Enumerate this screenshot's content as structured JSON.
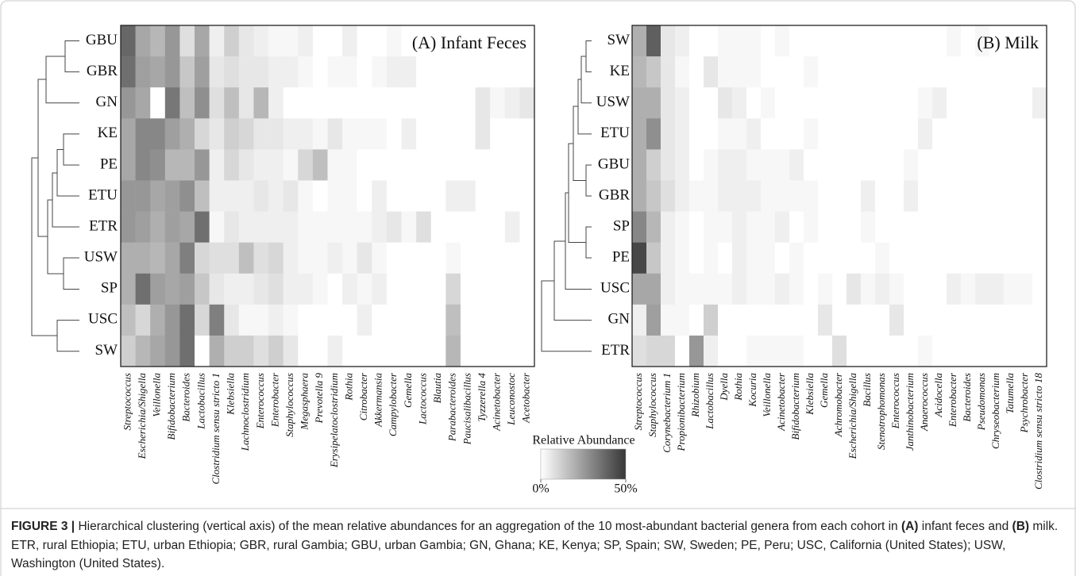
{
  "chart_data": [
    {
      "type": "heatmap",
      "title": "(A) Infant Feces",
      "rows": [
        "GBU",
        "GBR",
        "GN",
        "KE",
        "PE",
        "ETU",
        "ETR",
        "USW",
        "SP",
        "USC",
        "SW"
      ],
      "columns": [
        "Streptococcus",
        "Escherichia/Shigella",
        "Veillonella",
        "Bifidobacterium",
        "Bacteroides",
        "Lactobacillus",
        "Clostridium sensu stricto 1",
        "Klebsiella",
        "Lachnoclostridium",
        "Enterococcus",
        "Enterobacter",
        "Staphylococcus",
        "Megasphaera",
        "Prevotella 9",
        "Erysipelatoclostridium",
        "Rothia",
        "Citrobacter",
        "Akkermansia",
        "Campylobacter",
        "Gemella",
        "Lactococcus",
        "Blautia",
        "Parabacteroides",
        "Paucisalibacillus",
        "Tyzzerella 4",
        "Acinetobacter",
        "Leuconostoc",
        "Acetobacter"
      ],
      "values": [
        [
          38,
          22,
          18,
          26,
          8,
          22,
          4,
          12,
          6,
          4,
          2,
          2,
          4,
          0,
          0,
          4,
          0,
          0,
          2,
          0,
          0,
          0,
          0,
          0,
          0,
          0,
          0,
          0
        ],
        [
          36,
          24,
          22,
          26,
          14,
          24,
          6,
          8,
          6,
          6,
          4,
          4,
          2,
          0,
          2,
          2,
          0,
          2,
          4,
          4,
          0,
          0,
          0,
          0,
          0,
          0,
          0,
          0
        ],
        [
          26,
          22,
          0,
          34,
          16,
          28,
          8,
          16,
          6,
          18,
          4,
          0,
          0,
          0,
          0,
          0,
          0,
          0,
          0,
          0,
          0,
          0,
          0,
          0,
          6,
          2,
          4,
          6
        ],
        [
          22,
          30,
          30,
          24,
          20,
          10,
          6,
          12,
          10,
          6,
          6,
          4,
          4,
          2,
          6,
          2,
          2,
          2,
          0,
          4,
          0,
          0,
          0,
          0,
          6,
          0,
          0,
          0
        ],
        [
          22,
          30,
          28,
          18,
          18,
          26,
          4,
          10,
          6,
          4,
          4,
          2,
          10,
          16,
          2,
          2,
          0,
          0,
          0,
          0,
          0,
          0,
          0,
          0,
          0,
          0,
          0,
          0
        ],
        [
          26,
          26,
          22,
          24,
          28,
          16,
          4,
          4,
          4,
          6,
          4,
          6,
          2,
          0,
          2,
          2,
          0,
          4,
          0,
          0,
          0,
          0,
          4,
          4,
          0,
          0,
          0,
          0
        ],
        [
          26,
          24,
          20,
          24,
          22,
          36,
          2,
          6,
          4,
          4,
          4,
          4,
          2,
          2,
          2,
          2,
          2,
          4,
          6,
          2,
          8,
          0,
          0,
          0,
          0,
          0,
          4,
          0
        ],
        [
          20,
          20,
          18,
          22,
          32,
          10,
          8,
          8,
          16,
          8,
          10,
          4,
          2,
          2,
          4,
          2,
          6,
          2,
          0,
          0,
          0,
          0,
          2,
          0,
          0,
          0,
          0,
          0
        ],
        [
          20,
          36,
          24,
          22,
          24,
          14,
          6,
          4,
          4,
          6,
          8,
          4,
          4,
          2,
          0,
          4,
          2,
          4,
          0,
          0,
          0,
          0,
          10,
          0,
          0,
          0,
          0,
          0
        ],
        [
          16,
          10,
          20,
          26,
          36,
          10,
          32,
          6,
          2,
          2,
          4,
          2,
          0,
          0,
          0,
          0,
          4,
          0,
          0,
          0,
          0,
          0,
          16,
          0,
          0,
          0,
          0,
          0
        ],
        [
          12,
          18,
          22,
          26,
          36,
          0,
          20,
          12,
          12,
          8,
          12,
          6,
          0,
          0,
          4,
          0,
          0,
          0,
          0,
          0,
          0,
          0,
          18,
          0,
          0,
          0,
          0,
          0
        ]
      ]
    },
    {
      "type": "heatmap",
      "title": "(B) Milk",
      "rows": [
        "SW",
        "KE",
        "USW",
        "ETU",
        "GBU",
        "GBR",
        "SP",
        "PE",
        "USC",
        "GN",
        "ETR"
      ],
      "columns": [
        "Streptococcus",
        "Staphylococcus",
        "Corynebacterium 1",
        "Propionibacterium",
        "Rhizobium",
        "Lactobacillus",
        "Dyella",
        "Rothia",
        "Kocuria",
        "Veillonella",
        "Acinetobacter",
        "Bifidobacterium",
        "Klebsiella",
        "Gemella",
        "Achromobacter",
        "Escherichia/Shigella",
        "Bacillus",
        "Stenotrophomonas",
        "Enterococcus",
        "Janthinobacterium",
        "Anaerococcus",
        "Acidocella",
        "Enterobacter",
        "Bacteroides",
        "Pseudomonas",
        "Chryseobacterium",
        "Tatumella",
        "Psychrobacter",
        "Clostridium sensu stricto 18"
      ],
      "values": [
        [
          20,
          40,
          6,
          4,
          0,
          0,
          2,
          2,
          2,
          0,
          2,
          0,
          0,
          0,
          0,
          0,
          0,
          0,
          0,
          0,
          0,
          0,
          2,
          0,
          2,
          0,
          0,
          0,
          0
        ],
        [
          18,
          14,
          6,
          2,
          0,
          6,
          2,
          2,
          2,
          0,
          0,
          0,
          2,
          0,
          0,
          0,
          0,
          0,
          0,
          0,
          0,
          0,
          0,
          0,
          0,
          0,
          0,
          0,
          0
        ],
        [
          20,
          20,
          6,
          4,
          0,
          0,
          6,
          4,
          0,
          2,
          0,
          0,
          0,
          0,
          0,
          0,
          0,
          0,
          0,
          0,
          2,
          4,
          0,
          0,
          0,
          0,
          0,
          0,
          4
        ],
        [
          20,
          28,
          6,
          4,
          0,
          0,
          2,
          2,
          4,
          0,
          0,
          0,
          2,
          0,
          0,
          0,
          0,
          0,
          0,
          0,
          4,
          0,
          0,
          0,
          0,
          0,
          0,
          0,
          0
        ],
        [
          20,
          12,
          6,
          4,
          0,
          2,
          4,
          4,
          2,
          2,
          2,
          4,
          0,
          0,
          0,
          0,
          0,
          0,
          0,
          2,
          0,
          0,
          0,
          0,
          0,
          0,
          0,
          0,
          0
        ],
        [
          20,
          14,
          8,
          4,
          2,
          2,
          4,
          4,
          4,
          2,
          2,
          2,
          2,
          0,
          0,
          0,
          4,
          0,
          0,
          4,
          0,
          0,
          0,
          0,
          0,
          0,
          0,
          0,
          0
        ],
        [
          30,
          18,
          4,
          2,
          0,
          2,
          2,
          4,
          2,
          2,
          4,
          0,
          2,
          0,
          0,
          0,
          2,
          0,
          0,
          0,
          0,
          0,
          0,
          0,
          0,
          0,
          0,
          0,
          0
        ],
        [
          46,
          14,
          4,
          2,
          0,
          2,
          0,
          4,
          2,
          2,
          0,
          2,
          0,
          0,
          0,
          0,
          0,
          2,
          0,
          0,
          0,
          0,
          0,
          0,
          0,
          0,
          0,
          0,
          0
        ],
        [
          22,
          22,
          4,
          2,
          2,
          2,
          2,
          4,
          2,
          2,
          4,
          2,
          0,
          2,
          0,
          6,
          2,
          4,
          2,
          0,
          0,
          0,
          4,
          2,
          4,
          4,
          2,
          2,
          0
        ],
        [
          4,
          24,
          2,
          2,
          0,
          12,
          0,
          0,
          0,
          0,
          0,
          0,
          0,
          6,
          0,
          0,
          0,
          0,
          6,
          0,
          0,
          0,
          0,
          0,
          0,
          0,
          0,
          0,
          0
        ],
        [
          8,
          10,
          10,
          0,
          26,
          4,
          0,
          0,
          2,
          2,
          2,
          2,
          0,
          0,
          8,
          0,
          0,
          0,
          0,
          0,
          2,
          0,
          0,
          0,
          0,
          0,
          0,
          0,
          0
        ]
      ]
    }
  ],
  "colorbar": {
    "label": "Relative Abundance",
    "zlim": [
      0,
      50
    ],
    "ticks": [
      {
        "value": 0,
        "label": "0%"
      },
      {
        "value": 50,
        "label": "50%"
      }
    ]
  },
  "caption": [
    "FIGURE 3 |",
    " Hierarchical clustering (vertical axis) of the mean relative abundances for an aggregation of the 10 most-abundant bacterial genera from each cohort in ",
    "(A)",
    " infant feces and ",
    "(B)",
    " milk. ETR, rural Ethiopia; ETU, urban Ethiopia; GBR, rural Gambia; GBU, urban Gambia; GN, Ghana; KE, Kenya; SP, Spain; SW, Sweden; PE, Peru; USC, California (United States); USW, Washington (United States)."
  ]
}
